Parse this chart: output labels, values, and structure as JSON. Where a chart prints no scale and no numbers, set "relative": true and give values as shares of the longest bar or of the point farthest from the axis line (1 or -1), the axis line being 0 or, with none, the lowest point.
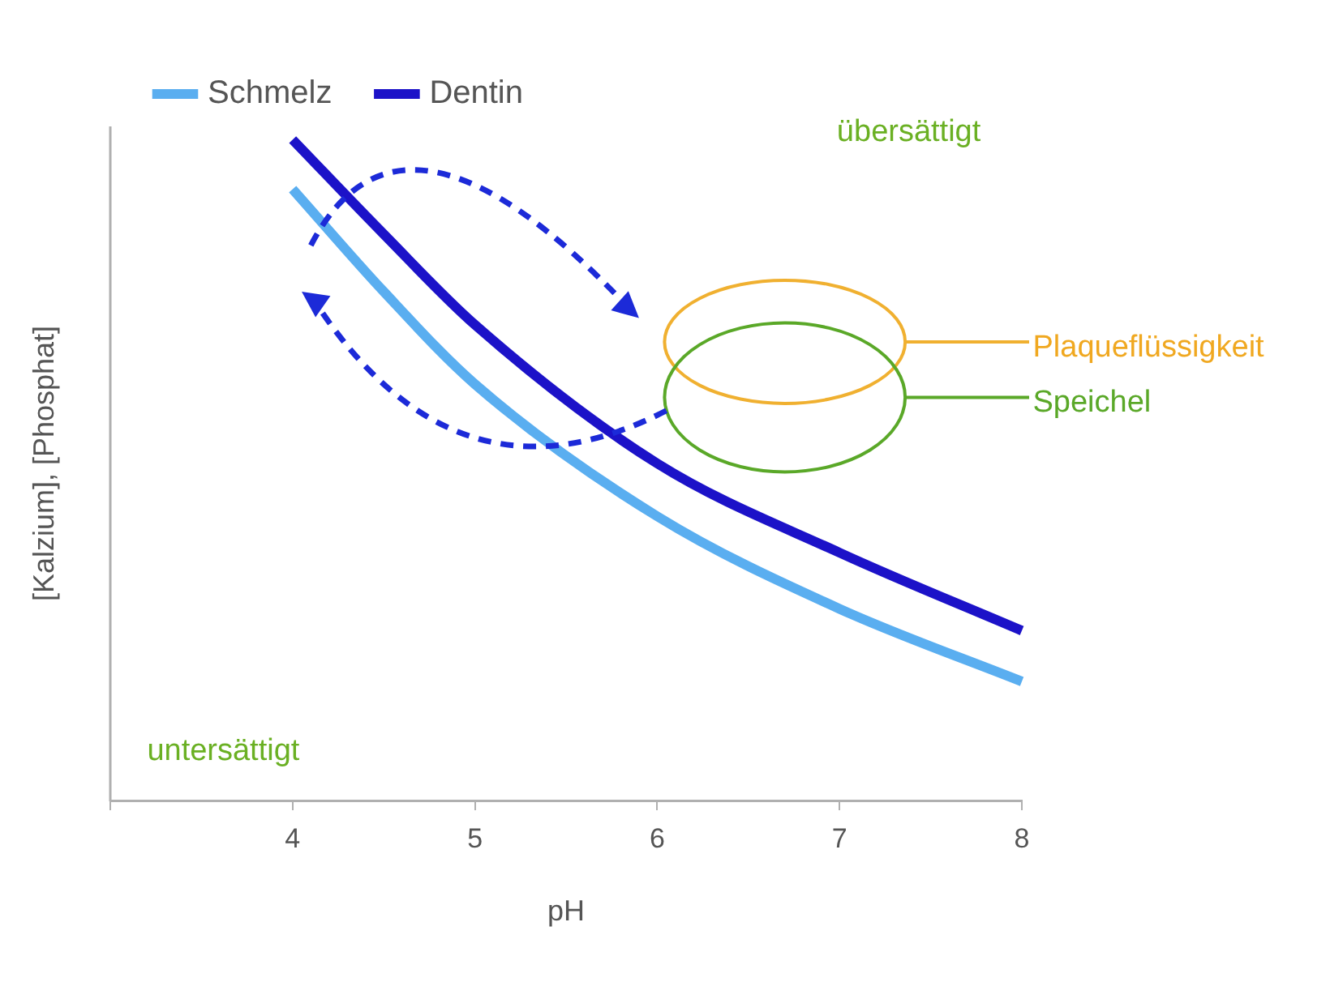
{
  "chart_data": {
    "type": "line",
    "relative": true,
    "xlabel": "pH",
    "ylabel": "[Kalzium], [Phosphat]",
    "xlim": [
      3,
      8
    ],
    "xticks": [
      {
        "value": 3,
        "label": null
      },
      4,
      5,
      6,
      7,
      8
    ],
    "legend": "top left",
    "marker": "none",
    "series": [
      {
        "name": "Schmelz",
        "color": "#5aaef0",
        "x": [
          4,
          4.5,
          5,
          6,
          7,
          8
        ],
        "values": [
          0.925,
          0.77,
          0.63,
          0.43,
          0.29,
          0.18
        ]
      },
      {
        "name": "Dentin",
        "color": "#1c12c8",
        "x": [
          4,
          4.5,
          5,
          6,
          7,
          8
        ],
        "values": [
          1,
          0.857,
          0.72,
          0.51,
          0.375,
          0.257
        ]
      }
    ],
    "annotations": [
      "übersättigt",
      "untersättigt",
      "Plaqueflüssigkeit",
      "Speichel"
    ]
  }
}
